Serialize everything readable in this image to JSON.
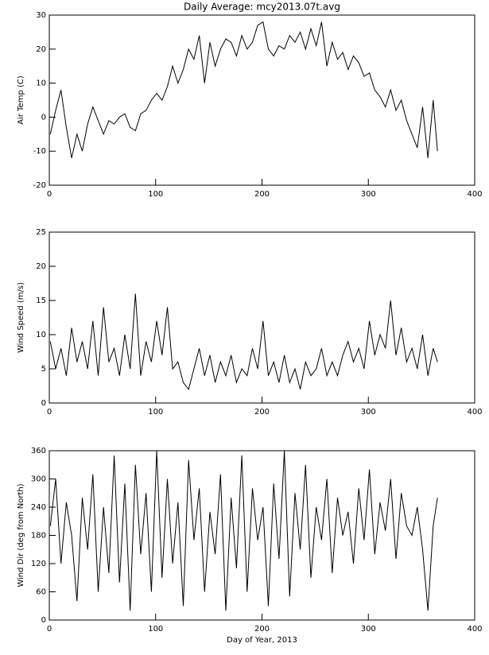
{
  "chart_data": [
    {
      "type": "line",
      "title": "Daily Average: mcy2013.07t.avg",
      "ylabel": "Air Temp (C)",
      "color": "#000000",
      "xlim": [
        0,
        400
      ],
      "xticks": [
        0,
        100,
        200,
        300,
        400
      ],
      "ylim": [
        -20,
        30
      ],
      "yticks": [
        -20,
        -10,
        0,
        10,
        20,
        30
      ],
      "x": [
        1,
        6,
        11,
        16,
        21,
        26,
        31,
        36,
        41,
        46,
        51,
        56,
        61,
        66,
        71,
        76,
        81,
        86,
        91,
        96,
        101,
        106,
        111,
        116,
        121,
        126,
        131,
        136,
        141,
        146,
        151,
        156,
        161,
        166,
        171,
        176,
        181,
        186,
        191,
        196,
        201,
        206,
        211,
        216,
        221,
        226,
        231,
        236,
        241,
        246,
        251,
        256,
        261,
        266,
        271,
        276,
        281,
        286,
        291,
        296,
        301,
        306,
        311,
        316,
        321,
        326,
        331,
        336,
        341,
        346,
        351,
        356,
        361,
        365
      ],
      "values": [
        -5,
        2,
        8,
        -3,
        -12,
        -5,
        -10,
        -2,
        3,
        -1,
        -5,
        -1,
        -2,
        0,
        1,
        -3,
        -4,
        1,
        2,
        5,
        7,
        5,
        9,
        15,
        10,
        14,
        20,
        17,
        24,
        10,
        22,
        15,
        20,
        23,
        22,
        18,
        24,
        20,
        22,
        27,
        28,
        20,
        18,
        21,
        20,
        24,
        22,
        25,
        20,
        26,
        21,
        28,
        15,
        22,
        17,
        19,
        14,
        18,
        16,
        12,
        13,
        8,
        6,
        3,
        8,
        2,
        5,
        -1,
        -5,
        -9,
        3,
        -12,
        5,
        -10
      ]
    },
    {
      "type": "line",
      "ylabel": "Wind Speed (m/s)",
      "color": "#000000",
      "xlim": [
        0,
        400
      ],
      "xticks": [
        0,
        100,
        200,
        300,
        400
      ],
      "ylim": [
        0,
        25
      ],
      "yticks": [
        0,
        5,
        10,
        15,
        20,
        25
      ],
      "x": [
        1,
        6,
        11,
        16,
        21,
        26,
        31,
        36,
        41,
        46,
        51,
        56,
        61,
        66,
        71,
        76,
        81,
        86,
        91,
        96,
        101,
        106,
        111,
        116,
        121,
        126,
        131,
        136,
        141,
        146,
        151,
        156,
        161,
        166,
        171,
        176,
        181,
        186,
        191,
        196,
        201,
        206,
        211,
        216,
        221,
        226,
        231,
        236,
        241,
        246,
        251,
        256,
        261,
        266,
        271,
        276,
        281,
        286,
        291,
        296,
        301,
        306,
        311,
        316,
        321,
        326,
        331,
        336,
        341,
        346,
        351,
        356,
        361,
        365
      ],
      "values": [
        9,
        5,
        8,
        4,
        11,
        6,
        9,
        5,
        12,
        4,
        14,
        6,
        8,
        4,
        10,
        5,
        16,
        4,
        9,
        6,
        12,
        7,
        14,
        5,
        6,
        3,
        2,
        5,
        8,
        4,
        7,
        3,
        6,
        4,
        7,
        3,
        5,
        4,
        8,
        5,
        12,
        4,
        6,
        3,
        7,
        3,
        5,
        2,
        6,
        4,
        5,
        8,
        4,
        6,
        4,
        7,
        9,
        6,
        8,
        5,
        12,
        7,
        10,
        8,
        15,
        7,
        11,
        6,
        8,
        5,
        10,
        4,
        8,
        6
      ]
    },
    {
      "type": "line",
      "ylabel": "Wind Dir (deg from North)",
      "xlabel": "Day of Year, 2013",
      "color": "#000000",
      "xlim": [
        0,
        400
      ],
      "xticks": [
        0,
        100,
        200,
        300,
        400
      ],
      "ylim": [
        0,
        360
      ],
      "yticks": [
        0,
        60,
        120,
        180,
        240,
        300,
        360
      ],
      "x": [
        1,
        6,
        11,
        16,
        21,
        26,
        31,
        36,
        41,
        46,
        51,
        56,
        61,
        66,
        71,
        76,
        81,
        86,
        91,
        96,
        101,
        106,
        111,
        116,
        121,
        126,
        131,
        136,
        141,
        146,
        151,
        156,
        161,
        166,
        171,
        176,
        181,
        186,
        191,
        196,
        201,
        206,
        211,
        216,
        221,
        226,
        231,
        236,
        241,
        246,
        251,
        256,
        261,
        266,
        271,
        276,
        281,
        286,
        291,
        296,
        301,
        306,
        311,
        316,
        321,
        326,
        331,
        336,
        341,
        346,
        351,
        356,
        361,
        365
      ],
      "values": [
        200,
        300,
        120,
        250,
        180,
        40,
        260,
        150,
        310,
        60,
        240,
        100,
        350,
        80,
        290,
        20,
        330,
        140,
        270,
        60,
        360,
        90,
        300,
        120,
        250,
        30,
        340,
        170,
        280,
        60,
        230,
        140,
        310,
        20,
        260,
        110,
        350,
        60,
        280,
        170,
        240,
        30,
        290,
        130,
        360,
        50,
        270,
        150,
        330,
        90,
        240,
        170,
        300,
        100,
        260,
        180,
        230,
        120,
        280,
        170,
        320,
        140,
        250,
        190,
        300,
        130,
        270,
        200,
        180,
        240,
        150,
        20,
        200,
        260
      ]
    }
  ]
}
